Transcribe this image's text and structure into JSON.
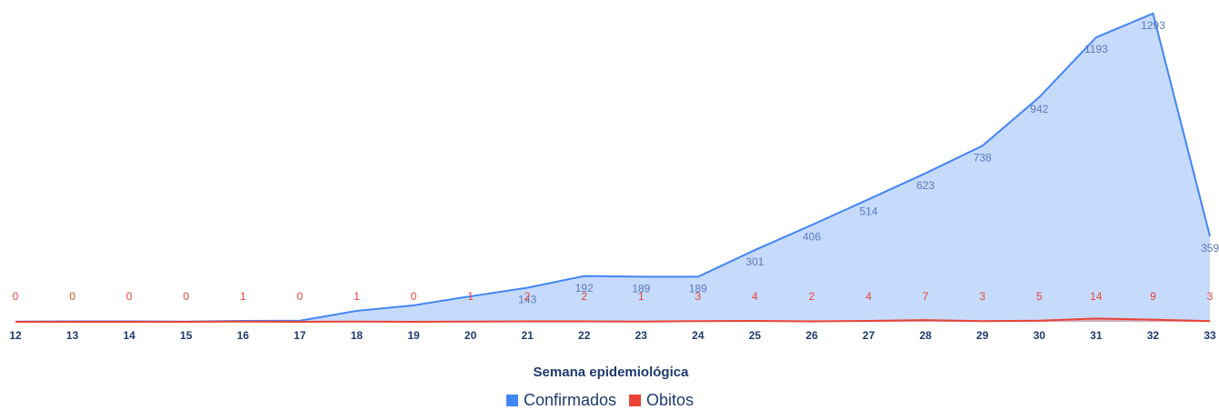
{
  "chart_data": {
    "type": "area",
    "x_label": "Semana epidemiológica",
    "categories": [
      "12",
      "13",
      "14",
      "15",
      "16",
      "17",
      "18",
      "19",
      "20",
      "21",
      "22",
      "23",
      "24",
      "25",
      "26",
      "27",
      "28",
      "29",
      "30",
      "31",
      "32",
      "33"
    ],
    "series": [
      {
        "name": "Confirmados",
        "color": "#4285f4",
        "values": [
          1,
          2,
          2,
          1,
          4,
          5,
          46,
          69,
          107,
          143,
          192,
          189,
          189,
          301,
          406,
          514,
          623,
          738,
          942,
          1193,
          1293,
          359
        ],
        "value_labels": [
          null,
          null,
          null,
          null,
          null,
          null,
          null,
          null,
          null,
          "143",
          "192",
          "189",
          "189",
          "301",
          "406",
          "514",
          "623",
          "738",
          "942",
          "1193",
          "1293",
          "359"
        ]
      },
      {
        "name": "Obitos",
        "color": "#ea4335",
        "values": [
          0,
          0,
          0,
          0,
          1,
          0,
          1,
          0,
          1,
          2,
          2,
          1,
          3,
          4,
          2,
          4,
          7,
          3,
          5,
          14,
          9,
          3
        ]
      }
    ],
    "ylim": [
      0,
      1300
    ]
  }
}
